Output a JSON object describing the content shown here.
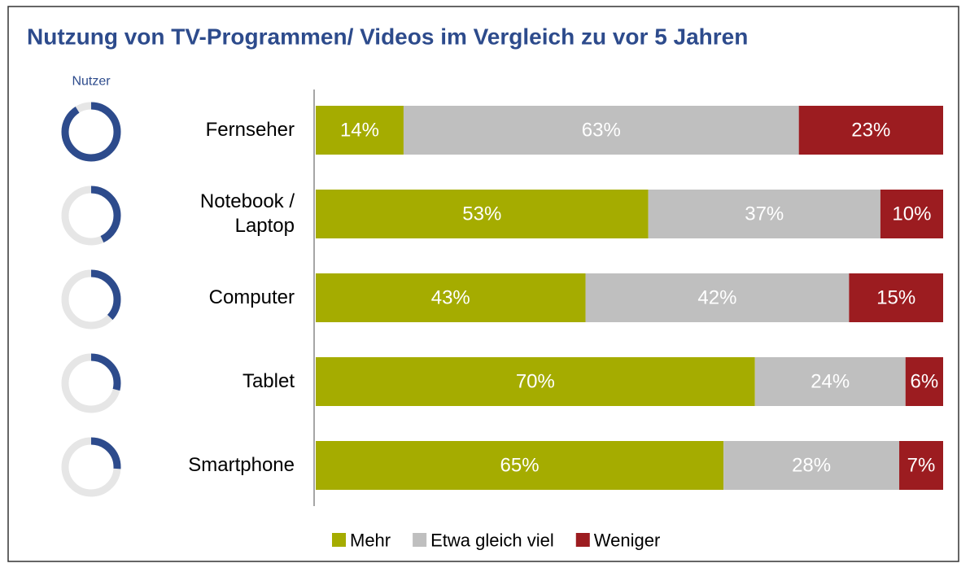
{
  "chart_data": [
    {
      "type": "stacked-bar-horizontal",
      "title": "Nutzung von TV-Programmen/ Videos im Vergleich zu vor 5 Jahren",
      "categories": [
        "Fernseher",
        "Notebook / Laptop",
        "Computer",
        "Tablet",
        "Smartphone"
      ],
      "xlim": [
        0,
        100
      ],
      "series": [
        {
          "name": "Mehr",
          "color": "#a5ac00",
          "values": [
            14,
            53,
            43,
            70,
            65
          ],
          "value_labels": [
            "14%",
            "53%",
            "43%",
            "70%",
            "65%"
          ]
        },
        {
          "name": "Etwa gleich viel",
          "color": "#bfbfbf",
          "values": [
            63,
            37,
            42,
            24,
            28
          ],
          "value_labels": [
            "63%",
            "37%",
            "42%",
            "24%",
            "28%"
          ]
        },
        {
          "name": "Weniger",
          "color": "#9c1c20",
          "values": [
            23,
            10,
            15,
            6,
            7
          ],
          "value_labels": [
            "23%",
            "10%",
            "15%",
            "6%",
            "7%"
          ]
        }
      ],
      "legend": "bottom"
    },
    {
      "type": "donut",
      "title": "Nutzer",
      "color": "#2d4b8c",
      "values": [
        91,
        43,
        37,
        29,
        26
      ],
      "value_labels": [
        "91%",
        "43%",
        "37%",
        "29%",
        "26%"
      ],
      "max": 100
    }
  ]
}
